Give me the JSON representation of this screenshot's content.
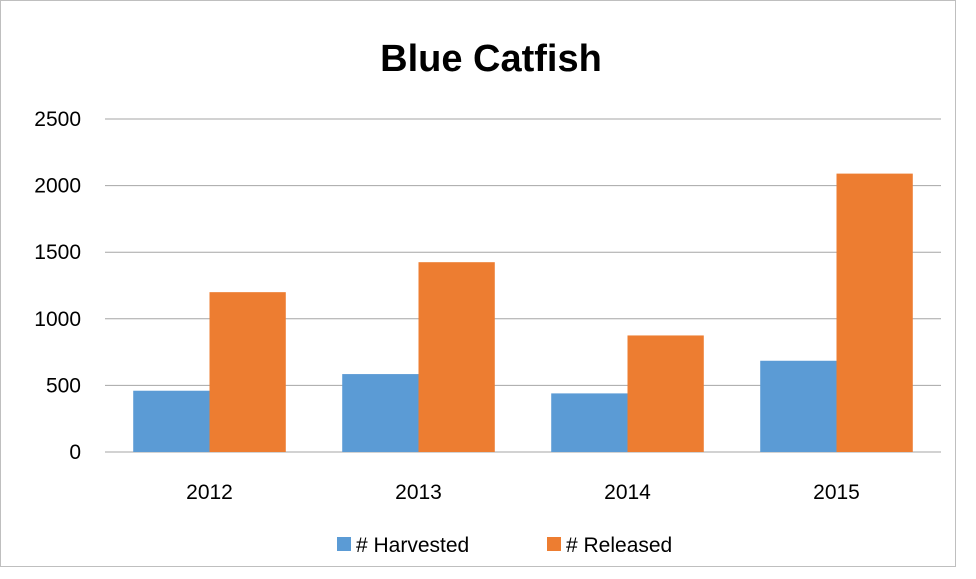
{
  "chart_data": {
    "type": "bar",
    "title": "Blue Catfish",
    "xlabel": "",
    "ylabel": "",
    "categories": [
      "2012",
      "2013",
      "2014",
      "2015"
    ],
    "series": [
      {
        "name": "# Harvested",
        "color": "#5b9bd5",
        "values": [
          460,
          585,
          440,
          685
        ]
      },
      {
        "name": "# Released",
        "color": "#ed7d31",
        "values": [
          1200,
          1425,
          875,
          2090
        ]
      }
    ],
    "ylim": [
      0,
      2500
    ],
    "yticks": [
      0,
      500,
      1000,
      1500,
      2000,
      2500
    ],
    "grid": true,
    "legend_position": "bottom"
  }
}
